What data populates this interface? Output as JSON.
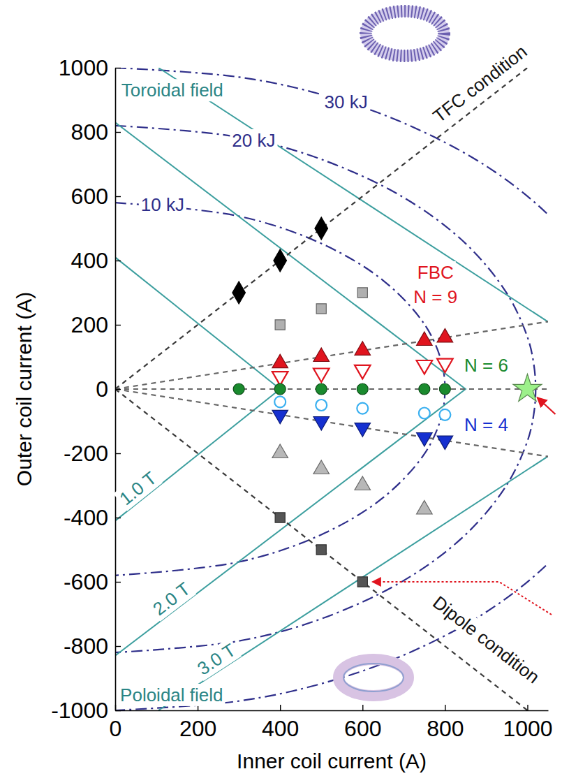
{
  "chart_data": {
    "type": "scatter",
    "x_label": "Inner coil current (A)",
    "y_label": "Outer coil current (A)",
    "xlim": [
      0,
      1050
    ],
    "ylim": [
      -1000,
      1000
    ],
    "xticks": [
      0,
      200,
      400,
      600,
      800,
      1000
    ],
    "yticks": [
      -1000,
      -800,
      -600,
      -400,
      -200,
      0,
      200,
      400,
      600,
      800,
      1000
    ],
    "annotations": [
      "Toroidal field",
      "Poloidal field",
      "FBC"
    ],
    "series": [
      {
        "type": "line",
        "name": "10 kJ",
        "color": "#2e2e8a",
        "line_style": "dash-dot",
        "x": [
          0,
          300,
          500,
          650,
          750,
          790,
          800,
          790,
          750,
          650,
          500,
          300,
          0
        ],
        "values": [
          580,
          538,
          453,
          338,
          202,
          92,
          0,
          -92,
          -202,
          -338,
          -453,
          -538,
          -580
        ]
      },
      {
        "type": "line",
        "name": "20 kJ",
        "color": "#2e2e8a",
        "line_style": "dash-dot",
        "x": [
          0,
          300,
          500,
          700,
          850,
          950,
          1000,
          1015,
          1020,
          1015,
          1000,
          950,
          850,
          700,
          500,
          300,
          0
        ],
        "values": [
          820,
          784,
          715,
          596,
          453,
          298,
          162,
          81,
          0,
          -81,
          -162,
          -298,
          -453,
          -596,
          -715,
          -784,
          -820
        ]
      },
      {
        "type": "line",
        "name": "30 kJ",
        "color": "#2e2e8a",
        "line_style": "dash-dot",
        "x": [
          0,
          300,
          500,
          700,
          900,
          1050,
          1150,
          1250,
          1150,
          1050,
          900,
          700,
          500,
          300,
          0
        ],
        "values": [
          1000,
          971,
          917,
          828,
          694,
          543,
          392,
          0,
          -392,
          -543,
          -694,
          -828,
          -917,
          -971,
          -1000
        ]
      },
      {
        "type": "line",
        "name": "1.0 T",
        "color": "#3d9f9f",
        "line_style": "solid",
        "x": [
          0,
          400,
          0
        ],
        "values": [
          410,
          0,
          -410
        ]
      },
      {
        "type": "line",
        "name": "2.0 T",
        "color": "#3d9f9f",
        "line_style": "solid",
        "x": [
          0,
          850,
          0
        ],
        "values": [
          830,
          0,
          -830
        ]
      },
      {
        "type": "line",
        "name": "3.0 T",
        "color": "#3d9f9f",
        "line_style": "solid",
        "x": [
          105,
          1300,
          105
        ],
        "values": [
          1000,
          0,
          -1000
        ]
      },
      {
        "type": "line",
        "name": "TFC condition",
        "color": "#3a3a3a",
        "line_style": "dashed",
        "x": [
          0,
          1000
        ],
        "values": [
          0,
          1000
        ]
      },
      {
        "type": "line",
        "name": "Dipole condition",
        "color": "#3a3a3a",
        "line_style": "dashed",
        "x": [
          0,
          1000
        ],
        "values": [
          0,
          -1000
        ]
      },
      {
        "type": "line",
        "name": "N = 9",
        "color": "#666666",
        "line_style": "dashed",
        "x": [
          0,
          1050
        ],
        "values": [
          0,
          210
        ]
      },
      {
        "type": "line",
        "name": "N = 6",
        "color": "#666666",
        "line_style": "dashed",
        "x": [
          0,
          1050
        ],
        "values": [
          0,
          0
        ]
      },
      {
        "type": "line",
        "name": "N = 4",
        "color": "#666666",
        "line_style": "dashed",
        "x": [
          0,
          1050
        ],
        "values": [
          0,
          -210
        ]
      },
      {
        "type": "scatter",
        "color": "#000000",
        "marker": "diamond",
        "x": [
          300,
          400,
          500
        ],
        "values": [
          300,
          400,
          500
        ]
      },
      {
        "type": "scatter",
        "color": "#b0b0b0",
        "marker": "square",
        "x": [
          400,
          500,
          600
        ],
        "values": [
          200,
          250,
          300
        ]
      },
      {
        "type": "scatter",
        "color": "#e0141e",
        "marker": "triangle-up",
        "x": [
          400,
          500,
          600,
          750,
          800
        ],
        "values": [
          80,
          100,
          120,
          150,
          160
        ]
      },
      {
        "type": "scatter",
        "color": "#e0141e",
        "marker": "triangle-down-open",
        "x": [
          400,
          500,
          600,
          750,
          800
        ],
        "values": [
          40,
          50,
          60,
          75,
          80
        ]
      },
      {
        "type": "scatter",
        "color": "#1a8a2e",
        "marker": "circle",
        "x": [
          300,
          400,
          500,
          600,
          750,
          800
        ],
        "values": [
          0,
          0,
          0,
          0,
          0,
          0
        ]
      },
      {
        "type": "scatter",
        "color": "#3ab0f0",
        "marker": "circle-open",
        "x": [
          400,
          500,
          600,
          750,
          800
        ],
        "values": [
          -40,
          -50,
          -60,
          -75,
          -80
        ]
      },
      {
        "type": "scatter",
        "color": "#1530d0",
        "marker": "triangle-down",
        "x": [
          400,
          500,
          600,
          750,
          800
        ],
        "values": [
          -80,
          -100,
          -120,
          -150,
          -160
        ]
      },
      {
        "type": "scatter",
        "color": "#b8b8b8",
        "marker": "triangle-up",
        "x": [
          400,
          500,
          600,
          750
        ],
        "values": [
          -200,
          -250,
          -300,
          -375
        ]
      },
      {
        "type": "scatter",
        "color": "#555555",
        "marker": "square",
        "x": [
          400,
          500,
          600
        ],
        "values": [
          -400,
          -500,
          -600
        ]
      },
      {
        "type": "scatter",
        "color": "#9cf08a",
        "marker": "star",
        "x": [
          1000
        ],
        "values": [
          0
        ]
      }
    ]
  }
}
